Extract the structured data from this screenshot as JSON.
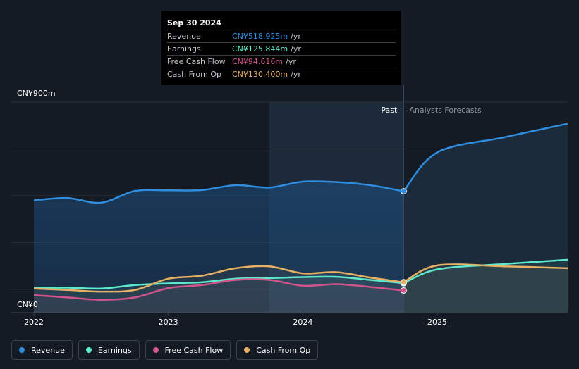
{
  "chart_data": {
    "type": "line",
    "y_unit_label_top": "CN¥900m",
    "y_unit_label_bottom": "CN¥0",
    "ylim": [
      0,
      900
    ],
    "xlim": [
      2022.0,
      2025.97
    ],
    "x_ticks": [
      {
        "value": 2022.0,
        "label": "2022"
      },
      {
        "value": 2023.0,
        "label": "2023"
      },
      {
        "value": 2024.0,
        "label": "2024"
      },
      {
        "value": 2025.0,
        "label": "2025"
      }
    ],
    "past_label": "Past",
    "forecast_label": "Analysts Forecasts",
    "past_end_x": 2024.75,
    "highlight_start_x": 2023.75,
    "series": [
      {
        "name": "Revenue",
        "key": "revenue",
        "color": "#2f8ee0",
        "fill": true,
        "points": [
          [
            2022.0,
            480
          ],
          [
            2022.25,
            490
          ],
          [
            2022.5,
            470
          ],
          [
            2022.75,
            520
          ],
          [
            2023.0,
            523
          ],
          [
            2023.25,
            524
          ],
          [
            2023.5,
            545
          ],
          [
            2023.75,
            535
          ],
          [
            2024.0,
            560
          ],
          [
            2024.25,
            558
          ],
          [
            2024.5,
            545
          ],
          [
            2024.75,
            519
          ]
        ],
        "forecast": [
          [
            2024.75,
            519
          ],
          [
            2025.0,
            685
          ],
          [
            2025.5,
            750
          ],
          [
            2025.97,
            808
          ]
        ]
      },
      {
        "name": "Earnings",
        "key": "earnings",
        "color": "#5ee8cc",
        "fill": false,
        "points": [
          [
            2022.0,
            105
          ],
          [
            2022.25,
            107
          ],
          [
            2022.5,
            103
          ],
          [
            2022.75,
            118
          ],
          [
            2023.0,
            125
          ],
          [
            2023.25,
            130
          ],
          [
            2023.5,
            145
          ],
          [
            2023.75,
            148
          ],
          [
            2024.0,
            152
          ],
          [
            2024.25,
            153
          ],
          [
            2024.5,
            140
          ],
          [
            2024.75,
            126
          ]
        ],
        "forecast": [
          [
            2024.75,
            126
          ],
          [
            2025.0,
            185
          ],
          [
            2025.5,
            208
          ],
          [
            2025.97,
            226
          ]
        ]
      },
      {
        "name": "Free Cash Flow",
        "key": "free_cash_flow",
        "color": "#d1548a",
        "fill": false,
        "points": [
          [
            2022.0,
            75
          ],
          [
            2022.25,
            65
          ],
          [
            2022.5,
            55
          ],
          [
            2022.75,
            65
          ],
          [
            2023.0,
            105
          ],
          [
            2023.25,
            118
          ],
          [
            2023.5,
            140
          ],
          [
            2023.75,
            140
          ],
          [
            2024.0,
            115
          ],
          [
            2024.25,
            122
          ],
          [
            2024.5,
            110
          ],
          [
            2024.75,
            95
          ]
        ],
        "forecast": []
      },
      {
        "name": "Cash From Op",
        "key": "cash_from_op",
        "color": "#e8b063",
        "fill": false,
        "points": [
          [
            2022.0,
            103
          ],
          [
            2022.25,
            97
          ],
          [
            2022.5,
            90
          ],
          [
            2022.75,
            97
          ],
          [
            2023.0,
            145
          ],
          [
            2023.25,
            158
          ],
          [
            2023.5,
            190
          ],
          [
            2023.75,
            198
          ],
          [
            2024.0,
            168
          ],
          [
            2024.25,
            173
          ],
          [
            2024.5,
            150
          ],
          [
            2024.75,
            130
          ]
        ],
        "forecast": [
          [
            2024.75,
            130
          ],
          [
            2025.0,
            202
          ],
          [
            2025.5,
            198
          ],
          [
            2025.97,
            190
          ]
        ]
      }
    ]
  },
  "tooltip": {
    "date": "Sep 30 2024",
    "rows": [
      {
        "label": "Revenue",
        "value": "CN¥518.925m",
        "unit": "/yr",
        "color": "#2f8ee0"
      },
      {
        "label": "Earnings",
        "value": "CN¥125.844m",
        "unit": "/yr",
        "color": "#5ee8cc"
      },
      {
        "label": "Free Cash Flow",
        "value": "CN¥94.616m",
        "unit": "/yr",
        "color": "#d1548a"
      },
      {
        "label": "Cash From Op",
        "value": "CN¥130.400m",
        "unit": "/yr",
        "color": "#e8b063"
      }
    ]
  },
  "legend": [
    {
      "label": "Revenue",
      "color": "#2f8ee0"
    },
    {
      "label": "Earnings",
      "color": "#5ee8cc"
    },
    {
      "label": "Free Cash Flow",
      "color": "#d1548a"
    },
    {
      "label": "Cash From Op",
      "color": "#e8b063"
    }
  ]
}
